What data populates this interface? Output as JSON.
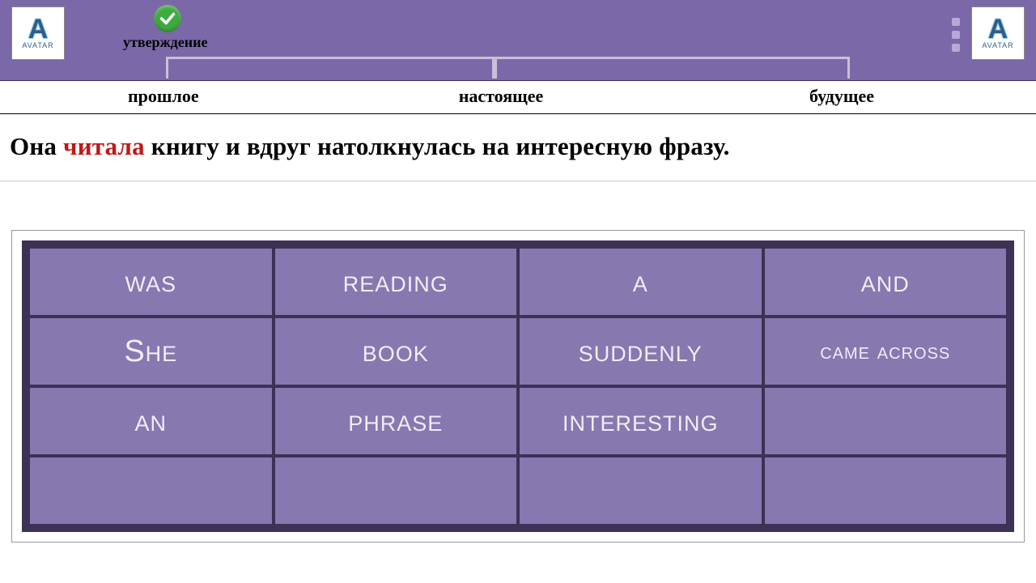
{
  "colors": {
    "topbar_bg": "#7b68a8",
    "grid_border": "#3d3155",
    "cell_bg": "#8878b0",
    "cell_text": "#f0ecf6",
    "highlight_text": "#c01818",
    "check_bg": "#3fab3f"
  },
  "logo": {
    "letter": "A",
    "brand": "AVATAR"
  },
  "header": {
    "affirmation_label": "утверждение"
  },
  "tenses": {
    "past": "прошлое",
    "present": "настоящее",
    "future": "будущее"
  },
  "sentence": {
    "pre": "Она ",
    "highlight": "читала",
    "post": " книгу и вдруг натолкнулась на интересную фразу."
  },
  "grid": {
    "rows": 4,
    "cols": 4,
    "cell_font_size": 38,
    "cell_font_size_small": 28,
    "cells": [
      [
        "was",
        "reading",
        "a",
        "and"
      ],
      [
        "She",
        "book",
        "suddenly",
        "came across"
      ],
      [
        "an",
        "phrase",
        "interesting",
        ""
      ],
      [
        "",
        "",
        "",
        ""
      ]
    ],
    "small_cells": [
      [
        1,
        3
      ]
    ]
  }
}
